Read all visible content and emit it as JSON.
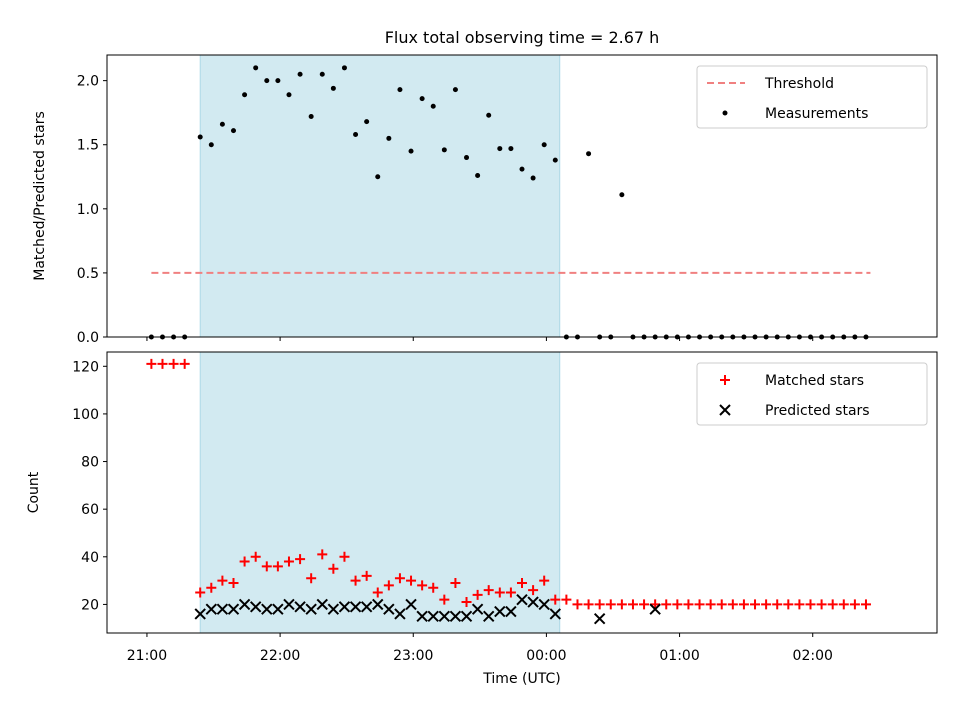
{
  "title": "Flux total observing time = 2.67 h",
  "colors": {
    "threshold": "#f08080",
    "measurements": "#000000",
    "matched": "#ff0000",
    "predicted": "#000000",
    "shade": "#add8e6"
  },
  "chart_data": [
    {
      "type": "scatter",
      "ylabel": "Matched/Predicted stars",
      "ylim": [
        0,
        2.2
      ],
      "yticks": [
        0.0,
        0.5,
        1.0,
        1.5,
        2.0
      ],
      "xlim": [
        "20:42",
        "02:56"
      ],
      "shaded_interval": [
        "21:24",
        "00:06"
      ],
      "legend": {
        "position": "upper right",
        "entries": [
          "Threshold",
          "Measurements"
        ]
      },
      "series": [
        {
          "name": "Threshold",
          "style": "dashed-line",
          "x": [
            "21:02",
            "02:26"
          ],
          "y": [
            0.5,
            0.5
          ]
        },
        {
          "name": "Measurements",
          "style": "dots",
          "x": [
            "21:02",
            "21:07",
            "21:12",
            "21:17",
            "21:24",
            "21:29",
            "21:34",
            "21:39",
            "21:44",
            "21:49",
            "21:54",
            "21:59",
            "22:04",
            "22:09",
            "22:14",
            "22:19",
            "22:24",
            "22:29",
            "22:34",
            "22:39",
            "22:44",
            "22:49",
            "22:54",
            "22:59",
            "23:04",
            "23:09",
            "23:14",
            "23:19",
            "23:24",
            "23:29",
            "23:34",
            "23:39",
            "23:44",
            "23:49",
            "23:54",
            "23:59",
            "00:04",
            "00:09",
            "00:14",
            "00:19",
            "00:24",
            "00:29",
            "00:34",
            "00:39",
            "00:44",
            "00:49",
            "00:54",
            "00:59",
            "01:04",
            "01:09",
            "01:14",
            "01:19",
            "01:24",
            "01:29",
            "01:34",
            "01:39",
            "01:44",
            "01:49",
            "01:54",
            "01:59",
            "02:04",
            "02:09",
            "02:14",
            "02:19",
            "02:24"
          ],
          "y": [
            0,
            0,
            0,
            0,
            1.56,
            1.5,
            1.66,
            1.61,
            1.89,
            2.1,
            2.0,
            2.0,
            1.89,
            2.05,
            1.72,
            2.05,
            1.94,
            2.1,
            1.58,
            1.68,
            1.25,
            1.55,
            1.93,
            1.45,
            1.86,
            1.8,
            1.46,
            1.93,
            1.4,
            1.26,
            1.73,
            1.47,
            1.47,
            1.31,
            1.24,
            1.5,
            1.38,
            0,
            0,
            1.43,
            0,
            0,
            1.11,
            0,
            0,
            0,
            0,
            0,
            0,
            0,
            0,
            0,
            0,
            0,
            0,
            0,
            0,
            0,
            0,
            0,
            0,
            0,
            0,
            0,
            0
          ]
        }
      ]
    },
    {
      "type": "scatter",
      "xlabel": "Time (UTC)",
      "ylabel": "Count",
      "ylim": [
        8,
        126
      ],
      "yticks": [
        20,
        40,
        60,
        80,
        100,
        120
      ],
      "xticks": [
        "21:00",
        "22:00",
        "23:00",
        "00:00",
        "01:00",
        "02:00"
      ],
      "xlim": [
        "20:42",
        "02:56"
      ],
      "shaded_interval": [
        "21:24",
        "00:06"
      ],
      "legend": {
        "position": "upper right",
        "entries": [
          "Matched stars",
          "Predicted stars"
        ]
      },
      "series": [
        {
          "name": "Matched stars",
          "marker": "+",
          "x": [
            "21:02",
            "21:07",
            "21:12",
            "21:17",
            "21:24",
            "21:29",
            "21:34",
            "21:39",
            "21:44",
            "21:49",
            "21:54",
            "21:59",
            "22:04",
            "22:09",
            "22:14",
            "22:19",
            "22:24",
            "22:29",
            "22:34",
            "22:39",
            "22:44",
            "22:49",
            "22:54",
            "22:59",
            "23:04",
            "23:09",
            "23:14",
            "23:19",
            "23:24",
            "23:29",
            "23:34",
            "23:39",
            "23:44",
            "23:49",
            "23:54",
            "23:59",
            "00:04",
            "00:09",
            "00:14",
            "00:19",
            "00:24",
            "00:29",
            "00:34",
            "00:39",
            "00:44",
            "00:49",
            "00:54",
            "00:59",
            "01:04",
            "01:09",
            "01:14",
            "01:19",
            "01:24",
            "01:29",
            "01:34",
            "01:39",
            "01:44",
            "01:49",
            "01:54",
            "01:59",
            "02:04",
            "02:09",
            "02:14",
            "02:19",
            "02:24"
          ],
          "y": [
            121,
            121,
            121,
            121,
            25,
            27,
            30,
            29,
            38,
            40,
            36,
            36,
            38,
            39,
            31,
            41,
            35,
            40,
            30,
            32,
            25,
            28,
            31,
            30,
            28,
            27,
            22,
            29,
            21,
            24,
            26,
            25,
            25,
            29,
            26,
            30,
            22,
            22,
            20,
            20,
            20,
            20,
            20,
            20,
            20,
            20,
            20,
            20,
            20,
            20,
            20,
            20,
            20,
            20,
            20,
            20,
            20,
            20,
            20,
            20,
            20,
            20,
            20,
            20,
            20
          ]
        },
        {
          "name": "Predicted stars",
          "marker": "x",
          "x": [
            "21:24",
            "21:29",
            "21:34",
            "21:39",
            "21:44",
            "21:49",
            "21:54",
            "21:59",
            "22:04",
            "22:09",
            "22:14",
            "22:19",
            "22:24",
            "22:29",
            "22:34",
            "22:39",
            "22:44",
            "22:49",
            "22:54",
            "22:59",
            "23:04",
            "23:09",
            "23:14",
            "23:19",
            "23:24",
            "23:29",
            "23:34",
            "23:39",
            "23:44",
            "23:49",
            "23:54",
            "23:59",
            "00:04",
            "00:24",
            "00:49"
          ],
          "y": [
            16,
            18,
            18,
            18,
            20,
            19,
            18,
            18,
            20,
            19,
            18,
            20,
            18,
            19,
            19,
            19,
            20,
            18,
            16,
            20,
            15,
            15,
            15,
            15,
            15,
            18,
            15,
            17,
            17,
            22,
            21,
            20,
            16,
            14,
            18
          ]
        }
      ]
    }
  ]
}
